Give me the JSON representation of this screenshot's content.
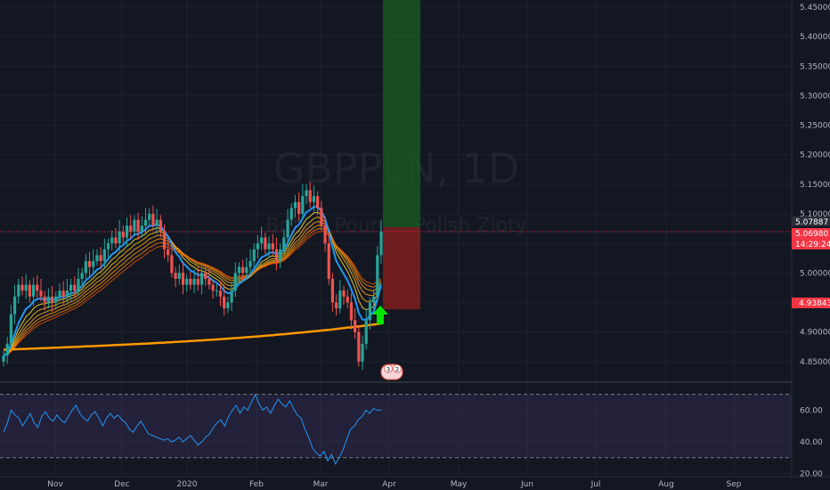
{
  "colors": {
    "background": "#131722",
    "up_candle": "#26a69a",
    "down_candle": "#ef5350",
    "ema_fast": "#2196f3",
    "ribbon": [
      "#ffeb3b",
      "#ffc107",
      "#ffa726",
      "#ff9800",
      "#f57c00",
      "#e65100"
    ],
    "ema_slow": "#ff9800",
    "rsi_line": "#2196f3",
    "rsi_band": "#7e57c2",
    "target_zone": "#1b5e20",
    "stop_zone": "#7f1d1d",
    "arrow": "#00e600",
    "current_price_tag": "#f23645"
  },
  "watermark": {
    "symbol": "GBPPLN, 1D",
    "description": "British Pound / Polish Zloty"
  },
  "price_tags": {
    "top": "5.07887",
    "current": "5.06980",
    "countdown": "14:29:24",
    "stop": "4.93843"
  },
  "event_badges": [
    "3",
    "2"
  ],
  "chart_data": [
    {
      "type": "candlestick",
      "title": "",
      "x_axis": {
        "labels": [
          "Nov",
          "Dec",
          "2020",
          "Feb",
          "Mar",
          "Apr",
          "May",
          "Jun",
          "Jul",
          "Aug",
          "Sep"
        ]
      },
      "y_axis": {
        "labels": [
          "5.45000",
          "5.40000",
          "5.35000",
          "5.30000",
          "5.25000",
          "5.20000",
          "5.15000",
          "5.10000",
          "5.05000",
          "5.00000",
          "4.95000",
          "4.90000",
          "4.85000"
        ],
        "range": [
          4.815,
          5.462
        ]
      },
      "candles_per_axis_label_segment": "approx. daily bars Oct 2019 – Mar 2020",
      "ohlc_close_series": [
        4.86,
        4.88,
        4.93,
        4.96,
        4.98,
        4.97,
        4.98,
        4.96,
        4.98,
        4.97,
        4.96,
        4.95,
        4.96,
        4.95,
        4.96,
        4.97,
        4.96,
        4.97,
        4.98,
        4.97,
        4.99,
        5.0,
        5.02,
        5.01,
        5.02,
        5.03,
        5.02,
        5.04,
        5.05,
        5.06,
        5.05,
        5.07,
        5.06,
        5.08,
        5.07,
        5.09,
        5.07,
        5.08,
        5.09,
        5.1,
        5.08,
        5.09,
        5.07,
        5.04,
        5.03,
        5.0,
        4.99,
        5.0,
        4.98,
        4.99,
        4.98,
        4.99,
        4.98,
        5.0,
        4.99,
        4.98,
        4.97,
        4.97,
        4.96,
        4.94,
        4.95,
        4.97,
        5.0,
        5.01,
        5.0,
        5.01,
        5.02,
        5.04,
        5.05,
        5.06,
        5.04,
        5.05,
        5.04,
        5.02,
        5.04,
        5.06,
        5.09,
        5.11,
        5.12,
        5.1,
        5.13,
        5.14,
        5.12,
        5.13,
        5.11,
        5.08,
        5.05,
        4.99,
        4.95,
        4.94,
        4.97,
        4.96,
        4.95,
        4.92,
        4.9,
        4.85,
        4.88,
        4.92,
        4.95,
        4.96,
        5.03,
        5.07
      ],
      "series": [
        {
          "name": "",
          "kind": "ema_fast"
        },
        {
          "name": "",
          "kind": "ema_slow"
        }
      ],
      "position_tool": {
        "entry": 5.0775,
        "target": 5.462,
        "stop": 4.93843
      }
    },
    {
      "type": "line",
      "title": "",
      "y_axis": {
        "labels": [
          "60.00",
          "40.00",
          "20.00"
        ],
        "range": [
          18,
          76
        ]
      },
      "band": [
        30,
        70
      ],
      "values": [
        46,
        52,
        60,
        57,
        55,
        50,
        54,
        58,
        52,
        49,
        56,
        59,
        55,
        53,
        57,
        54,
        52,
        56,
        60,
        63,
        58,
        55,
        53,
        57,
        59,
        55,
        50,
        55,
        58,
        55,
        57,
        54,
        52,
        48,
        46,
        50,
        53,
        49,
        45,
        44,
        43,
        42,
        41,
        42,
        40,
        41,
        43,
        40,
        42,
        44,
        41,
        38,
        40,
        43,
        45,
        49,
        52,
        54,
        50,
        56,
        60,
        63,
        58,
        62,
        60,
        65,
        70,
        64,
        60,
        62,
        58,
        63,
        67,
        64,
        62,
        66,
        61,
        57,
        55,
        48,
        43,
        36,
        33,
        31,
        34,
        28,
        32,
        26,
        30,
        35,
        42,
        48,
        50,
        54,
        56,
        60,
        58,
        61,
        60,
        60
      ]
    }
  ]
}
